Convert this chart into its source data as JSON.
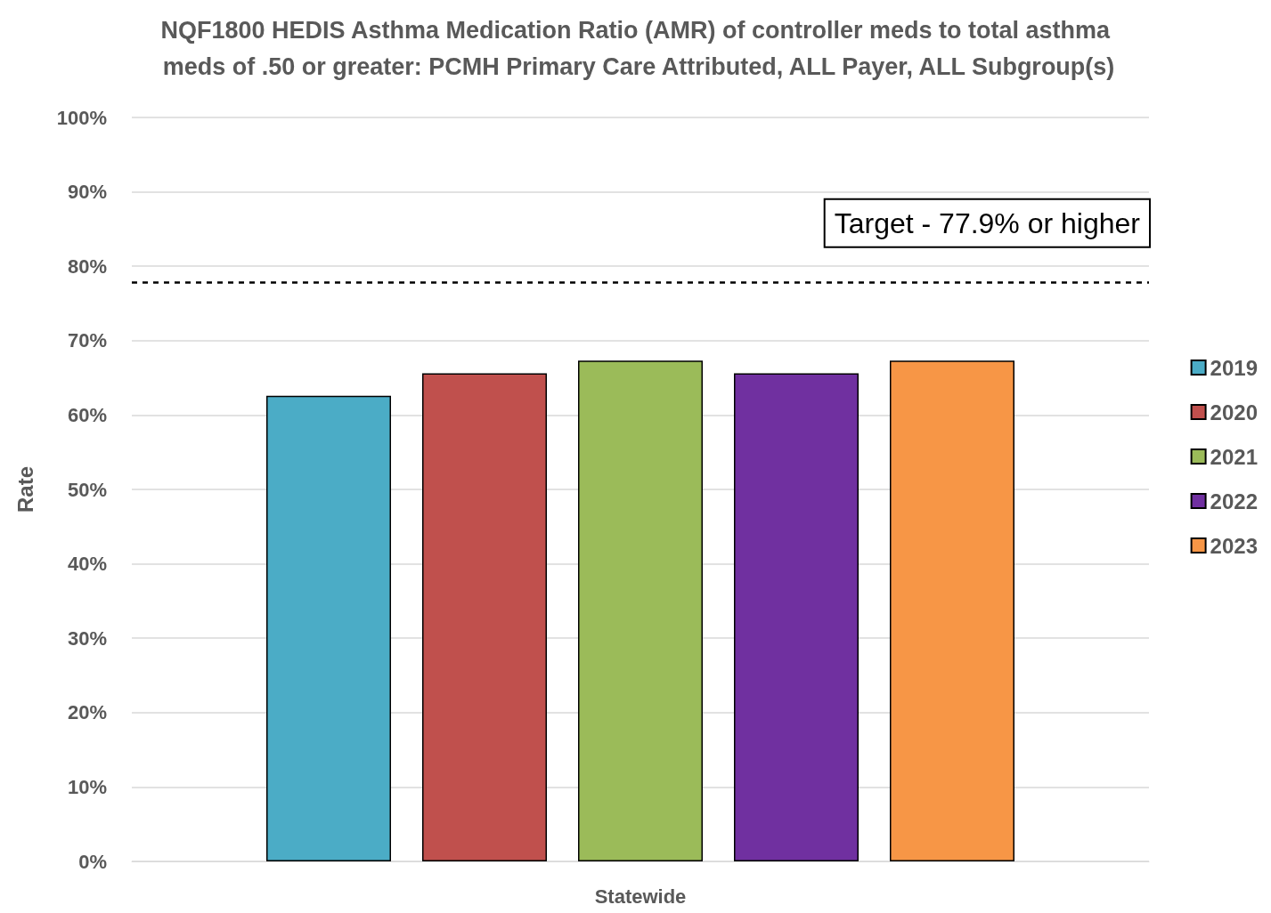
{
  "chart_data": {
    "type": "bar",
    "title": "NQF1800 HEDIS Asthma Medication Ratio (AMR) of controller meds to total asthma meds of .50 or greater: PCMH Primary Care Attributed, ALL Payer, ALL Subgroup(s)",
    "categories": [
      "Statewide"
    ],
    "series": [
      {
        "name": "2019",
        "color": "#4bacc6",
        "values": [
          62.6
        ]
      },
      {
        "name": "2020",
        "color": "#c0504d",
        "values": [
          65.6
        ]
      },
      {
        "name": "2021",
        "color": "#9bbb59",
        "values": [
          67.3
        ]
      },
      {
        "name": "2022",
        "color": "#7030a0",
        "values": [
          65.6
        ]
      },
      {
        "name": "2023",
        "color": "#f79646",
        "values": [
          67.3
        ]
      }
    ],
    "ylabel": "Rate",
    "ylim": [
      0,
      100
    ],
    "yticks": [
      {
        "value": 0,
        "label": "0%"
      },
      {
        "value": 10,
        "label": "10%"
      },
      {
        "value": 20,
        "label": "20%"
      },
      {
        "value": 30,
        "label": "30%"
      },
      {
        "value": 40,
        "label": "40%"
      },
      {
        "value": 50,
        "label": "50%"
      },
      {
        "value": 60,
        "label": "60%"
      },
      {
        "value": 70,
        "label": "70%"
      },
      {
        "value": 80,
        "label": "80%"
      },
      {
        "value": 90,
        "label": "90%"
      },
      {
        "value": 100,
        "label": "100%"
      }
    ],
    "ref_lines": [
      {
        "axis": "y",
        "value": 77.9,
        "label": "Target - 77.9% or higher",
        "color": "#000000",
        "line_style": "dashed"
      }
    ],
    "grid": "y",
    "legend": "right"
  }
}
